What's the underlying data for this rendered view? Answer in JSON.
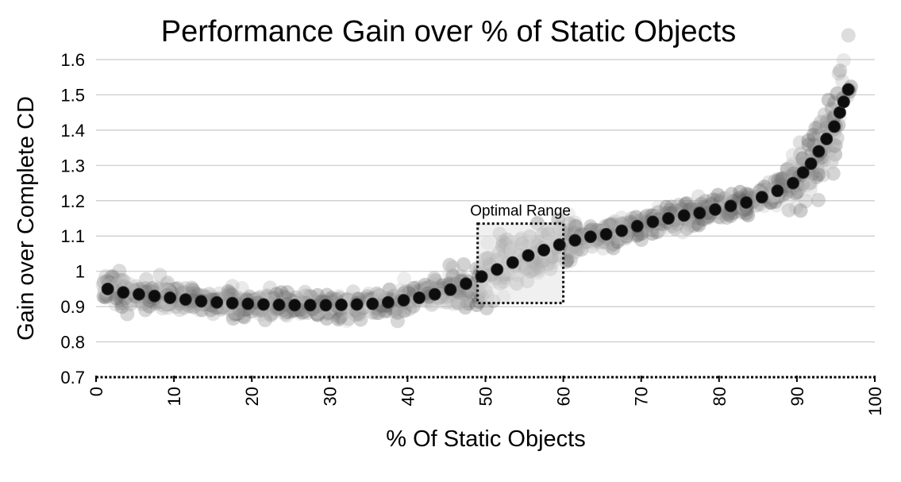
{
  "chart_data": {
    "type": "scatter",
    "title": "Performance Gain over % of Static Objects",
    "xlabel": "% Of Static Objects",
    "ylabel": "Gain over Complete CD",
    "xlim": [
      0,
      100
    ],
    "ylim": [
      0.7,
      1.6
    ],
    "x_ticks": [
      "0",
      "10",
      "20",
      "30",
      "40",
      "50",
      "60",
      "70",
      "80",
      "90",
      "100"
    ],
    "y_ticks": [
      "0.7",
      "0.8",
      "0.9",
      "1",
      "1.1",
      "1.2",
      "1.3",
      "1.4",
      "1.5",
      "1.6"
    ],
    "grid": true,
    "annotations": [
      {
        "text": "Optimal Range",
        "x_range": [
          49,
          60
        ],
        "y_range": [
          0.91,
          1.135
        ]
      }
    ],
    "series": [
      {
        "style": "mean",
        "color": "#111111",
        "points": [
          [
            1.5,
            0.95
          ],
          [
            3.5,
            0.94
          ],
          [
            5.5,
            0.935
          ],
          [
            7.5,
            0.93
          ],
          [
            9.5,
            0.925
          ],
          [
            11.5,
            0.92
          ],
          [
            13.5,
            0.915
          ],
          [
            15.5,
            0.912
          ],
          [
            17.5,
            0.91
          ],
          [
            19.5,
            0.908
          ],
          [
            21.5,
            0.906
          ],
          [
            23.5,
            0.905
          ],
          [
            25.5,
            0.904
          ],
          [
            27.5,
            0.904
          ],
          [
            29.5,
            0.904
          ],
          [
            31.5,
            0.905
          ],
          [
            33.5,
            0.906
          ],
          [
            35.5,
            0.908
          ],
          [
            37.5,
            0.912
          ],
          [
            39.5,
            0.918
          ],
          [
            41.5,
            0.925
          ],
          [
            43.5,
            0.935
          ],
          [
            45.5,
            0.948
          ],
          [
            47.5,
            0.965
          ],
          [
            49.5,
            0.985
          ],
          [
            51.5,
            1.005
          ],
          [
            53.5,
            1.025
          ],
          [
            55.5,
            1.045
          ],
          [
            57.5,
            1.06
          ],
          [
            59.5,
            1.075
          ],
          [
            61.5,
            1.088
          ],
          [
            63.5,
            1.098
          ],
          [
            65.5,
            1.105
          ],
          [
            67.5,
            1.115
          ],
          [
            69.5,
            1.128
          ],
          [
            71.5,
            1.14
          ],
          [
            73.5,
            1.15
          ],
          [
            75.5,
            1.158
          ],
          [
            77.5,
            1.165
          ],
          [
            79.5,
            1.175
          ],
          [
            81.5,
            1.185
          ],
          [
            83.5,
            1.195
          ],
          [
            85.5,
            1.21
          ],
          [
            87.5,
            1.228
          ],
          [
            89.5,
            1.25
          ],
          [
            90.8,
            1.28
          ],
          [
            91.8,
            1.305
          ],
          [
            92.8,
            1.34
          ],
          [
            93.8,
            1.375
          ],
          [
            94.8,
            1.41
          ],
          [
            95.5,
            1.45
          ],
          [
            96.0,
            1.48
          ],
          [
            96.6,
            1.515
          ]
        ]
      }
    ]
  }
}
